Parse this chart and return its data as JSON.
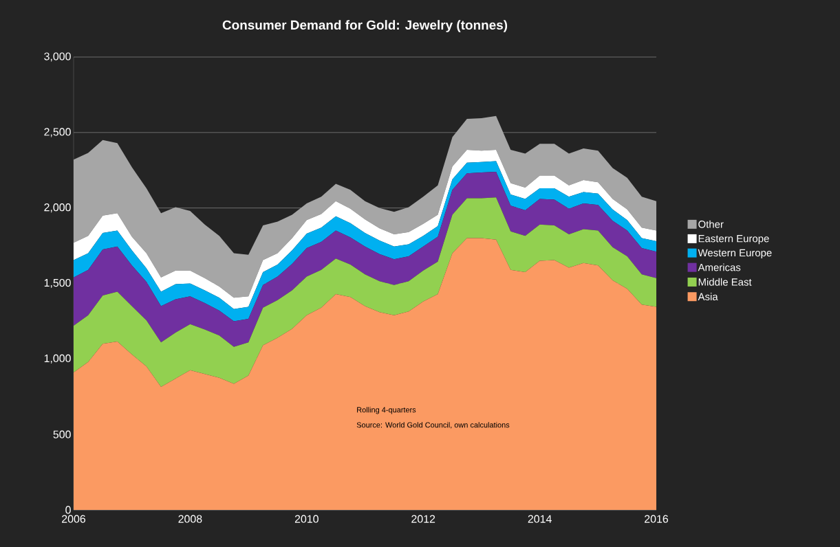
{
  "chart_data": {
    "type": "area",
    "stacked": true,
    "title": "Consumer Demand for Gold: Jewelry (tonnes)",
    "x": [
      2006,
      2006.25,
      2006.5,
      2006.75,
      2007,
      2007.25,
      2007.5,
      2007.75,
      2008,
      2008.25,
      2008.5,
      2008.75,
      2009,
      2009.25,
      2009.5,
      2009.75,
      2010,
      2010.25,
      2010.5,
      2010.75,
      2011,
      2011.25,
      2011.5,
      2011.75,
      2012,
      2012.25,
      2012.5,
      2012.75,
      2013,
      2013.25,
      2013.5,
      2013.75,
      2014,
      2014.25,
      2014.5,
      2014.75,
      2015,
      2015.25,
      2015.5,
      2015.75,
      2016
    ],
    "series": [
      {
        "name": "Asia",
        "color": "#fb9a62",
        "values": [
          910,
          980,
          1100,
          1115,
          1030,
          950,
          815,
          870,
          925,
          900,
          875,
          835,
          890,
          1090,
          1140,
          1200,
          1290,
          1340,
          1430,
          1410,
          1350,
          1310,
          1290,
          1315,
          1380,
          1430,
          1700,
          1800,
          1800,
          1790,
          1590,
          1575,
          1650,
          1655,
          1605,
          1635,
          1620,
          1520,
          1465,
          1360,
          1345
        ]
      },
      {
        "name": "Middle East",
        "color": "#92d050",
        "values": [
          310,
          310,
          320,
          330,
          320,
          305,
          295,
          305,
          305,
          295,
          280,
          245,
          220,
          250,
          250,
          255,
          255,
          250,
          235,
          215,
          210,
          205,
          200,
          200,
          205,
          215,
          255,
          265,
          265,
          280,
          255,
          240,
          240,
          230,
          220,
          225,
          230,
          220,
          215,
          200,
          190
        ]
      },
      {
        "name": "Americas",
        "color": "#7030a0",
        "values": [
          320,
          300,
          305,
          300,
          270,
          255,
          240,
          220,
          185,
          175,
          165,
          170,
          155,
          150,
          155,
          175,
          190,
          185,
          185,
          180,
          185,
          180,
          170,
          165,
          160,
          165,
          165,
          165,
          170,
          170,
          170,
          170,
          170,
          170,
          170,
          170,
          170,
          175,
          170,
          175,
          175
        ]
      },
      {
        "name": "Western Europe",
        "color": "#00b0f0",
        "values": [
          115,
          110,
          110,
          105,
          100,
          90,
          95,
          100,
          85,
          85,
          85,
          80,
          80,
          85,
          80,
          90,
          95,
          95,
          95,
          95,
          90,
          90,
          85,
          80,
          70,
          70,
          70,
          70,
          70,
          70,
          75,
          75,
          70,
          75,
          80,
          75,
          75,
          75,
          70,
          65,
          70
        ]
      },
      {
        "name": "Eastern Europe",
        "color": "#ffffff",
        "values": [
          115,
          115,
          115,
          115,
          90,
          100,
          95,
          90,
          85,
          80,
          75,
          75,
          70,
          80,
          75,
          80,
          90,
          90,
          100,
          95,
          90,
          80,
          80,
          80,
          80,
          75,
          85,
          85,
          75,
          75,
          75,
          75,
          85,
          85,
          75,
          80,
          75,
          70,
          70,
          70,
          70
        ]
      },
      {
        "name": "Other",
        "color": "#a6a6a6",
        "values": [
          550,
          550,
          500,
          465,
          460,
          430,
          425,
          420,
          395,
          355,
          335,
          295,
          275,
          230,
          210,
          155,
          110,
          115,
          115,
          125,
          120,
          135,
          150,
          165,
          180,
          195,
          195,
          205,
          215,
          225,
          220,
          225,
          210,
          210,
          210,
          210,
          210,
          205,
          210,
          205,
          195
        ]
      }
    ],
    "xlim": [
      2006,
      2016
    ],
    "xticks": [
      2006,
      2008,
      2010,
      2012,
      2014,
      2016
    ],
    "ylim": [
      0,
      3000
    ],
    "yticks": [
      0,
      500,
      {
        "value": 1000,
        "label": "1,000"
      },
      {
        "value": 1500,
        "label": "1,500"
      },
      {
        "value": 2000,
        "label": "2,000"
      },
      {
        "value": 2500,
        "label": "2,500"
      },
      {
        "value": 3000,
        "label": "3,000"
      }
    ],
    "grid": "y",
    "legend": "right",
    "annotations": [
      "Rolling 4-quarters",
      "Source: World Gold Council, own calculations"
    ]
  }
}
